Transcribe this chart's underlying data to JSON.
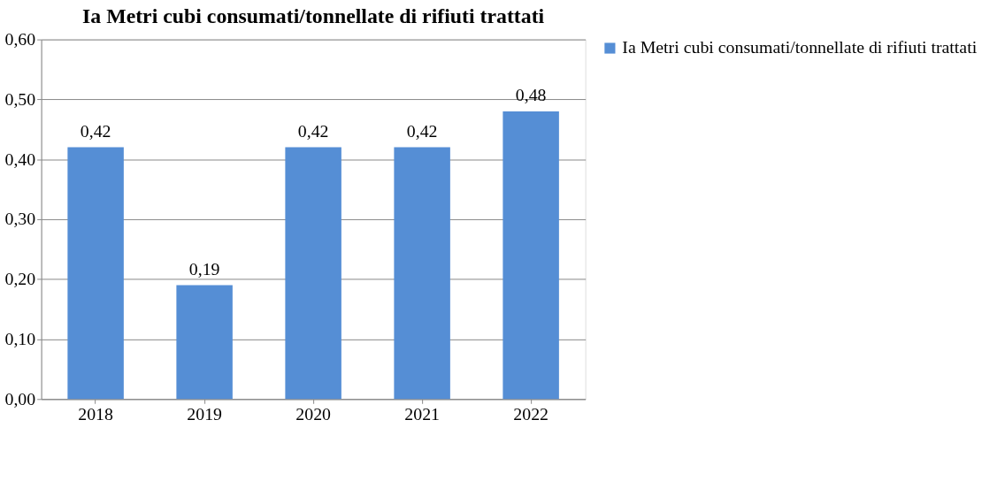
{
  "chart_data": {
    "type": "bar",
    "title": "Ia Metri cubi consumati/tonnellate di rifiuti trattati",
    "categories": [
      "2018",
      "2019",
      "2020",
      "2021",
      "2022"
    ],
    "series": [
      {
        "name": "Ia Metri cubi consumati/tonnellate di rifiuti trattati",
        "color": "#558ed5",
        "values": [
          0.42,
          0.19,
          0.42,
          0.42,
          0.48
        ],
        "value_labels": [
          "0,42",
          "0,19",
          "0,42",
          "0,42",
          "0,48"
        ]
      }
    ],
    "ylim": [
      0,
      0.6
    ],
    "yticks": [
      {
        "value": 0,
        "label": "0,00"
      },
      {
        "value": 0.1,
        "label": "0,10"
      },
      {
        "value": 0.2,
        "label": "0,20"
      },
      {
        "value": 0.3,
        "label": "0,30"
      },
      {
        "value": 0.4,
        "label": "0,40"
      },
      {
        "value": 0.5,
        "label": "0,50"
      },
      {
        "value": 0.6,
        "label": "0,60"
      }
    ],
    "grid": "y",
    "legend": "right"
  }
}
